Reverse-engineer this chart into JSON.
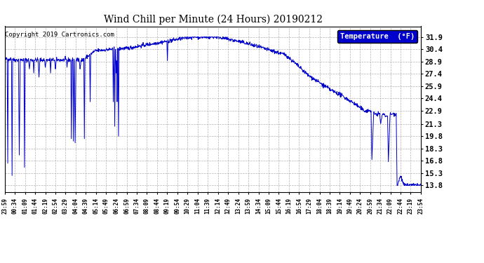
{
  "title": "Wind Chill per Minute (24 Hours) 20190212",
  "copyright": "Copyright 2019 Cartronics.com",
  "legend_label": "Temperature  (°F)",
  "line_color": "#0000cc",
  "bg_color": "#ffffff",
  "grid_color": "#aaaaaa",
  "legend_bg": "#0000cc",
  "legend_fg": "#ffffff",
  "yticks": [
    13.8,
    15.3,
    16.8,
    18.3,
    19.8,
    21.3,
    22.9,
    24.4,
    25.9,
    27.4,
    28.9,
    30.4,
    31.9
  ],
  "ymin": 13.0,
  "ymax": 33.2,
  "x_labels": [
    "23:59",
    "00:34",
    "01:09",
    "01:44",
    "02:19",
    "02:54",
    "03:29",
    "04:04",
    "04:39",
    "05:14",
    "05:49",
    "06:24",
    "06:59",
    "07:34",
    "08:09",
    "08:44",
    "09:19",
    "09:54",
    "10:29",
    "11:04",
    "11:39",
    "12:14",
    "12:49",
    "13:24",
    "13:59",
    "14:34",
    "15:09",
    "15:44",
    "16:19",
    "16:54",
    "17:29",
    "18:04",
    "18:39",
    "19:14",
    "19:49",
    "20:24",
    "20:59",
    "21:34",
    "22:09",
    "22:44",
    "23:19",
    "23:54"
  ]
}
